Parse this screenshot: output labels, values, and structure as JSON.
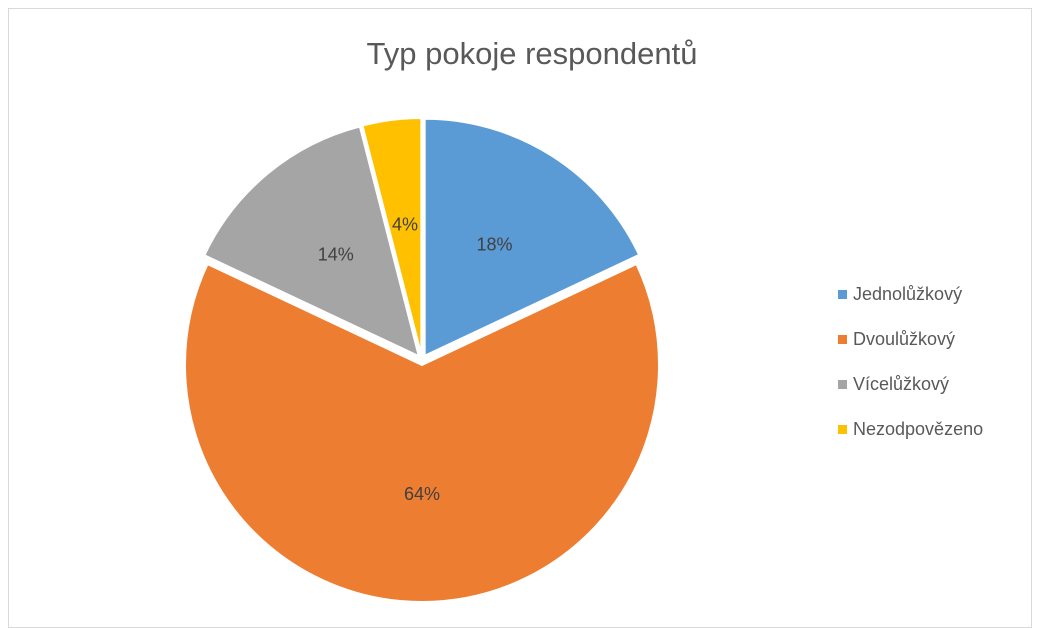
{
  "chart_data": {
    "type": "pie",
    "title": "Typ pokoje respondentů",
    "series": [
      {
        "categories": [
          "Jednolůžkový",
          "Dvoulůžkový",
          "Vícelůžkový",
          "Nezodpovězeno"
        ],
        "values": [
          18,
          64,
          14,
          4
        ],
        "data_labels": [
          "18%",
          "64%",
          "14%",
          "4%"
        ]
      }
    ],
    "colors": [
      "#5b9bd5",
      "#ed7d31",
      "#a5a5a5",
      "#ffc000"
    ],
    "legend_position": "right",
    "exploded": true
  }
}
